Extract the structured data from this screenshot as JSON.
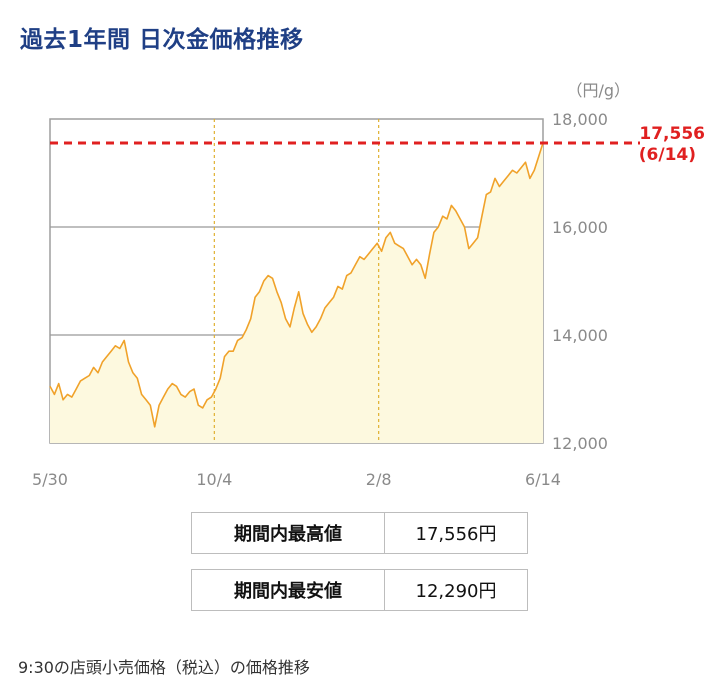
{
  "title": "過去1年間 日次金価格推移",
  "stats": [
    {
      "label": "期間内最高値",
      "value": "17,556円"
    },
    {
      "label": "期間内最安値",
      "value": "12,290円"
    }
  ],
  "caption": "9:30の店頭小売価格（税込）の価格推移",
  "colors": {
    "title": "#1f3f85",
    "line": "#f0a22a",
    "fill": "#fdf9df",
    "max_line": "#e02020",
    "grid": "#999999",
    "period_line": "#e0b030"
  },
  "chart_data": {
    "type": "area",
    "unit_label": "（円/g）",
    "ylim": [
      12000,
      18000
    ],
    "yticks": [
      12000,
      14000,
      16000,
      18000
    ],
    "ytick_labels": [
      "12,000",
      "14,000",
      "16,000",
      "18,000"
    ],
    "xtick_labels": [
      "5/30",
      "10/4",
      "2/8",
      "6/14"
    ],
    "max_label": "17,556",
    "max_date_label": "(6/14)",
    "max_value": 17556,
    "grid": true,
    "series": [
      {
        "values": [
          13050,
          12900,
          13100,
          12800,
          12900,
          12850,
          13000,
          13150,
          13200,
          13250,
          13400,
          13300,
          13500,
          13600,
          13700,
          13800,
          13750,
          13900,
          13500,
          13300,
          13200,
          12900,
          12800,
          12700,
          12300,
          12700,
          12850,
          13000,
          13100,
          13050,
          12900,
          12850,
          12950,
          13000,
          12700,
          12650,
          12800,
          12850,
          13000,
          13200,
          13600,
          13700,
          13700,
          13900,
          13950,
          14100,
          14300,
          14700,
          14800,
          15000,
          15100,
          15050,
          14800,
          14600,
          14300,
          14150,
          14500,
          14800,
          14400,
          14200,
          14050,
          14150,
          14300,
          14500,
          14600,
          14700,
          14900,
          14850,
          15100,
          15150,
          15300,
          15450,
          15400,
          15500,
          15600,
          15700,
          15550,
          15800,
          15900,
          15700,
          15650,
          15600,
          15450,
          15300,
          15400,
          15300,
          15050,
          15500,
          15900,
          16000,
          16200,
          16150,
          16400,
          16300,
          16150,
          16000,
          15600,
          15700,
          15800,
          16200,
          16600,
          16650,
          16900,
          16750,
          16850,
          16950,
          17050,
          17000,
          17100,
          17200,
          16900,
          17050,
          17300,
          17556
        ]
      }
    ]
  }
}
